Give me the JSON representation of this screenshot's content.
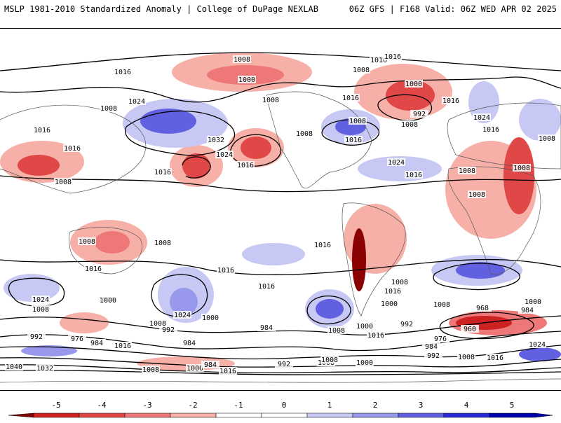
{
  "header": {
    "left": "MSLP 1981-2010 Standardized Anomaly | College of DuPage NEXLAB",
    "right": "06Z GFS | F168 Valid: 06Z WED APR 02 2025"
  },
  "colorbar": {
    "ticks": [
      "-5",
      "-4",
      "-3",
      "-2",
      "-1",
      "0",
      "1",
      "2",
      "3",
      "4",
      "5"
    ],
    "colors": [
      "#8b0000",
      "#cc2222",
      "#e04848",
      "#ee7777",
      "#f6b0a8",
      "#ffffff",
      "#ffffff",
      "#c8c8f4",
      "#9898ec",
      "#6060e0",
      "#2a2ad8",
      "#0000b0"
    ]
  },
  "map": {
    "isobar_labels": [
      "1008",
      "1016",
      "1000",
      "1008",
      "1016",
      "1008",
      "1016",
      "1024",
      "1016",
      "1008",
      "1016",
      "1016",
      "1032",
      "1024",
      "1016",
      "1016",
      "1008",
      "1008",
      "1008",
      "1016",
      "1024",
      "1024",
      "1016",
      "1000",
      "992",
      "1008",
      "1016",
      "1008",
      "1008",
      "1016",
      "1008",
      "1008",
      "1008",
      "1008",
      "1016",
      "1016",
      "1016",
      "1016",
      "1024",
      "1016",
      "1008",
      "1000",
      "1024",
      "1008",
      "1000",
      "992",
      "984",
      "1008",
      "1000",
      "984",
      "1016",
      "1016",
      "1008",
      "1000",
      "1008",
      "992",
      "968",
      "984",
      "960",
      "976",
      "984",
      "992",
      "1008",
      "1016",
      "1024",
      "1000",
      "992",
      "976",
      "984",
      "1016",
      "1040",
      "1032",
      "1008",
      "1000",
      "984",
      "1016",
      "992",
      "1008",
      "1000",
      "1008"
    ]
  }
}
